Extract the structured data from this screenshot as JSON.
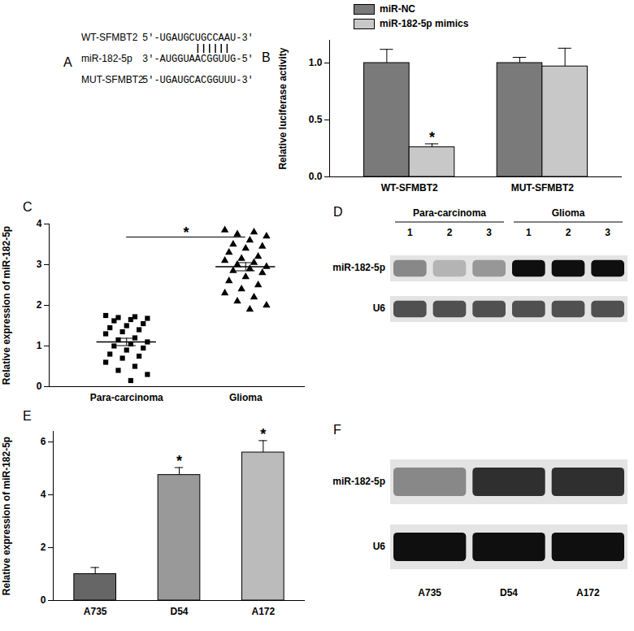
{
  "chart_data": [
    {
      "type": "alignment",
      "panel": "A",
      "rows": [
        {
          "label": "WT-SFMBT2",
          "sequence": "5'-UGAUGCUGCCAAU-3'"
        },
        {
          "label": "miR-182-5p",
          "sequence": "3'-AUGGUAACGGUUG-5'"
        },
        {
          "label": "MUT-SFMBT2",
          "sequence": "5'-UGAUGCACGGUUU-3'"
        }
      ],
      "paired_positions": [
        7,
        8,
        9,
        10,
        11,
        12
      ]
    },
    {
      "type": "bar",
      "panel": "B",
      "categories": [
        "WT-SFMBT2",
        "MUT-SFMBT2"
      ],
      "series": [
        {
          "name": "miR-NC",
          "color": "#7a7a7a",
          "values": [
            1.0,
            1.0
          ],
          "errors": [
            0.12,
            0.05
          ]
        },
        {
          "name": "miR-182-5p mimics",
          "color": "#c8c8c8",
          "values": [
            0.26,
            0.97
          ],
          "errors": [
            0.03,
            0.16
          ]
        }
      ],
      "ylabel": "Relative luciferase activity",
      "ylim": [
        0,
        1.2
      ],
      "yticks": [
        {
          "value": 0,
          "label": "0.0"
        },
        {
          "value": 0.5,
          "label": "0.5"
        },
        {
          "value": 1,
          "label": "1.0"
        }
      ],
      "legend": "top",
      "annotations": [
        {
          "category": "WT-SFMBT2",
          "series": "miR-182-5p mimics",
          "text": "*"
        }
      ]
    },
    {
      "type": "scatter",
      "panel": "C",
      "groups": [
        {
          "category": "Para-carcinoma",
          "marker": "square",
          "color": "#000000",
          "values": [
            1.75,
            1.72,
            1.7,
            1.68,
            1.65,
            1.62,
            1.55,
            1.5,
            1.45,
            1.4,
            1.35,
            1.3,
            1.2,
            1.15,
            1.1,
            1.05,
            1.0,
            0.95,
            0.9,
            0.8,
            0.75,
            0.7,
            0.6,
            0.5,
            0.4,
            0.3,
            0.15
          ],
          "mean": 1.1,
          "sem": 0.09
        },
        {
          "category": "Glioma",
          "marker": "triangle",
          "color": "#000000",
          "values": [
            3.85,
            3.8,
            3.75,
            3.7,
            3.6,
            3.5,
            3.45,
            3.4,
            3.3,
            3.2,
            3.15,
            3.1,
            3.05,
            3.0,
            2.95,
            2.9,
            2.85,
            2.8,
            2.7,
            2.6,
            2.5,
            2.4,
            2.3,
            2.2,
            2.1,
            2.0,
            1.9
          ],
          "mean": 2.95,
          "sem": 0.1
        }
      ],
      "ylabel": "Relative expression of miR-182-5p",
      "ylim": [
        0,
        4
      ],
      "yticks": [
        0,
        1,
        2,
        3,
        4
      ],
      "annotations": [
        {
          "text": "*"
        }
      ]
    },
    {
      "type": "blot",
      "panel": "D",
      "groups": [
        {
          "label": "Para-carcinoma",
          "lanes": [
            "1",
            "2",
            "3"
          ]
        },
        {
          "label": "Glioma",
          "lanes": [
            "1",
            "2",
            "3"
          ]
        }
      ],
      "rows": [
        {
          "label": "miR-182-5p",
          "intensity": [
            0.55,
            0.4,
            0.5,
            0.95,
            0.95,
            0.95
          ]
        },
        {
          "label": "U6",
          "intensity": [
            0.75,
            0.75,
            0.75,
            0.75,
            0.75,
            0.75
          ]
        }
      ]
    },
    {
      "type": "bar",
      "panel": "E",
      "categories": [
        "A735",
        "D54",
        "A172"
      ],
      "values": [
        1.0,
        4.75,
        5.6
      ],
      "errors": [
        0.25,
        0.28,
        0.45
      ],
      "colors": [
        "#666666",
        "#999999",
        "#bbbbbb"
      ],
      "ylabel": "Relative expression of miR-182-5p",
      "ylim": [
        0,
        6.4
      ],
      "yticks": [
        0,
        2,
        4,
        6
      ],
      "annotations": [
        {
          "category": "D54",
          "text": "*"
        },
        {
          "category": "A172",
          "text": "*"
        }
      ]
    },
    {
      "type": "blot",
      "panel": "F",
      "lanes": [
        "A735",
        "D54",
        "A172"
      ],
      "rows": [
        {
          "label": "miR-182-5p",
          "intensity": [
            0.55,
            0.85,
            0.85
          ]
        },
        {
          "label": "U6",
          "intensity": [
            0.95,
            0.95,
            0.95
          ]
        }
      ]
    }
  ]
}
